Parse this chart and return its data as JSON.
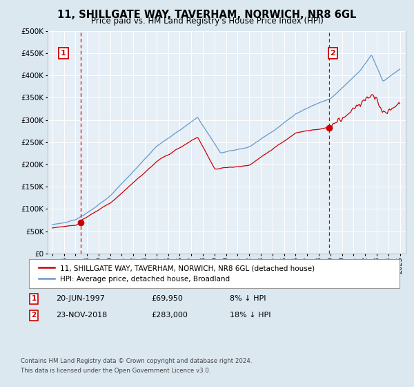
{
  "title": "11, SHILLGATE WAY, TAVERHAM, NORWICH, NR8 6GL",
  "subtitle": "Price paid vs. HM Land Registry's House Price Index (HPI)",
  "background_color": "#dce8f0",
  "plot_bg_color": "#e6eef6",
  "ylim": [
    0,
    500000
  ],
  "yticks": [
    0,
    50000,
    100000,
    150000,
    200000,
    250000,
    300000,
    350000,
    400000,
    450000,
    500000
  ],
  "ytick_labels": [
    "£0",
    "£50K",
    "£100K",
    "£150K",
    "£200K",
    "£250K",
    "£300K",
    "£350K",
    "£400K",
    "£450K",
    "£500K"
  ],
  "sale1_x": 1997.47,
  "sale1_y": 69950,
  "sale2_x": 2018.9,
  "sale2_y": 283000,
  "legend_label1": "11, SHILLGATE WAY, TAVERHAM, NORWICH, NR8 6GL (detached house)",
  "legend_label2": "HPI: Average price, detached house, Broadland",
  "footnote1": "Contains HM Land Registry data © Crown copyright and database right 2024.",
  "footnote2": "This data is licensed under the Open Government Licence v3.0.",
  "red_line_color": "#cc0000",
  "blue_line_color": "#6699cc",
  "grid_color": "#ffffff",
  "vline_color": "#cc0000",
  "xmin": 1994.6,
  "xmax": 2025.5,
  "annot1_date": "20-JUN-1997",
  "annot1_price": "£69,950",
  "annot1_hpi": "8% ↓ HPI",
  "annot2_date": "23-NOV-2018",
  "annot2_price": "£283,000",
  "annot2_hpi": "18% ↓ HPI"
}
